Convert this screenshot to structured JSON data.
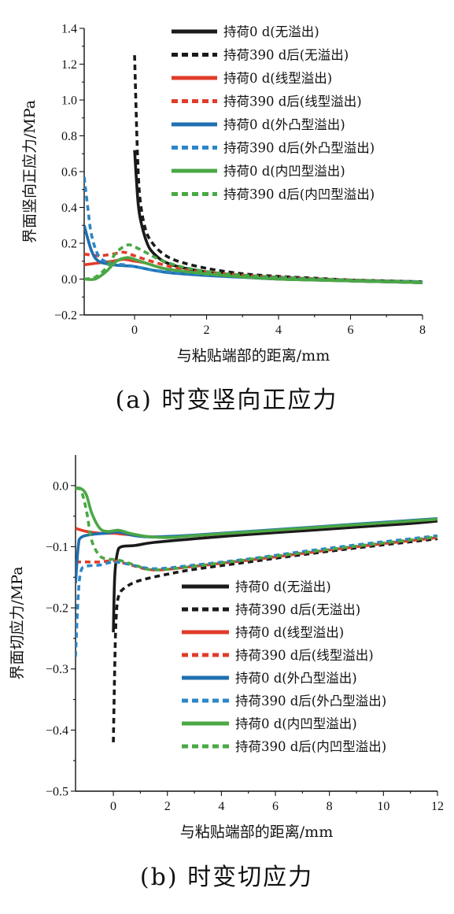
{
  "chart_data": [
    {
      "type": "line",
      "caption": "(a) 时变竖向正应力",
      "xlabel": "与粘贴端部的距离/mm",
      "ylabel": "界面竖向正应力/MPa",
      "xlim": [
        -1.4,
        8
      ],
      "ylim": [
        -0.2,
        1.4
      ],
      "x_ticks": [
        0,
        2,
        4,
        6,
        8
      ],
      "y_ticks": [
        -0.2,
        0.0,
        0.2,
        0.4,
        0.6,
        0.8,
        1.0,
        1.2,
        1.4
      ],
      "x_tick_labels": [
        "0",
        "2",
        "4",
        "6",
        "8"
      ],
      "y_tick_labels": [
        "−0.2",
        "0.0",
        "0.2",
        "0.4",
        "0.6",
        "0.8",
        "1.0",
        "1.2",
        "1.4"
      ],
      "legend_position": "top-right",
      "series": [
        {
          "name": "持荷0 d(无溢出)",
          "color": "#1a1a1a",
          "dash": "solid",
          "points": [
            [
              0.0,
              0.72
            ],
            [
              0.1,
              0.42
            ],
            [
              0.2,
              0.3
            ],
            [
              0.35,
              0.2
            ],
            [
              0.5,
              0.15
            ],
            [
              0.8,
              0.1
            ],
            [
              1.2,
              0.07
            ],
            [
              2,
              0.04
            ],
            [
              3,
              0.02
            ],
            [
              4,
              0.01
            ],
            [
              5,
              0.0
            ],
            [
              6,
              -0.01
            ],
            [
              7,
              -0.015
            ],
            [
              8,
              -0.02
            ]
          ]
        },
        {
          "name": "持荷390 d后(无溢出)",
          "color": "#1a1a1a",
          "dash": "dashed",
          "points": [
            [
              0.0,
              1.25
            ],
            [
              0.08,
              0.7
            ],
            [
              0.15,
              0.45
            ],
            [
              0.3,
              0.28
            ],
            [
              0.5,
              0.2
            ],
            [
              0.8,
              0.14
            ],
            [
              1.2,
              0.1
            ],
            [
              2,
              0.06
            ],
            [
              3,
              0.03
            ],
            [
              4,
              0.015
            ],
            [
              5,
              0.005
            ],
            [
              6,
              -0.005
            ],
            [
              7,
              -0.01
            ],
            [
              8,
              -0.015
            ]
          ]
        },
        {
          "name": "持荷0 d(线型溢出)",
          "color": "#e03c2a",
          "dash": "solid",
          "points": [
            [
              -1.4,
              0.08
            ],
            [
              -1.0,
              0.09
            ],
            [
              -0.6,
              0.1
            ],
            [
              -0.3,
              0.11
            ],
            [
              0.0,
              0.1
            ],
            [
              0.3,
              0.09
            ],
            [
              0.8,
              0.06
            ],
            [
              1.5,
              0.04
            ],
            [
              2.5,
              0.02
            ],
            [
              4,
              0.0
            ],
            [
              6,
              -0.01
            ],
            [
              8,
              -0.02
            ]
          ]
        },
        {
          "name": "持荷390 d后(线型溢出)",
          "color": "#e03c2a",
          "dash": "dashed",
          "points": [
            [
              -1.4,
              0.14
            ],
            [
              -1.0,
              0.13
            ],
            [
              -0.6,
              0.14
            ],
            [
              -0.3,
              0.15
            ],
            [
              0.0,
              0.13
            ],
            [
              0.3,
              0.11
            ],
            [
              0.8,
              0.08
            ],
            [
              1.5,
              0.05
            ],
            [
              2.5,
              0.03
            ],
            [
              4,
              0.01
            ],
            [
              6,
              -0.005
            ],
            [
              8,
              -0.015
            ]
          ]
        },
        {
          "name": "持荷0 d(外凸型溢出)",
          "color": "#1f6fb0",
          "dash": "solid",
          "points": [
            [
              -1.4,
              0.3
            ],
            [
              -1.2,
              0.16
            ],
            [
              -1.0,
              0.1
            ],
            [
              -0.6,
              0.08
            ],
            [
              -0.3,
              0.075
            ],
            [
              0.0,
              0.07
            ],
            [
              0.5,
              0.05
            ],
            [
              1.0,
              0.035
            ],
            [
              2,
              0.02
            ],
            [
              3,
              0.01
            ],
            [
              4,
              0.0
            ],
            [
              6,
              -0.01
            ],
            [
              8,
              -0.02
            ]
          ]
        },
        {
          "name": "持荷390 d后(外凸型溢出)",
          "color": "#2b86c8",
          "dash": "dashed",
          "points": [
            [
              -1.4,
              0.57
            ],
            [
              -1.3,
              0.4
            ],
            [
              -1.2,
              0.25
            ],
            [
              -1.0,
              0.13
            ],
            [
              -0.7,
              0.09
            ],
            [
              -0.3,
              0.08
            ],
            [
              0.0,
              0.07
            ],
            [
              0.5,
              0.05
            ],
            [
              1.0,
              0.04
            ],
            [
              2,
              0.025
            ],
            [
              3,
              0.012
            ],
            [
              4,
              0.004
            ],
            [
              6,
              -0.008
            ],
            [
              8,
              -0.015
            ]
          ]
        },
        {
          "name": "持荷0 d(内凹型溢出)",
          "color": "#4aa845",
          "dash": "solid",
          "points": [
            [
              -1.4,
              0.0
            ],
            [
              -1.1,
              0.0
            ],
            [
              -0.8,
              0.04
            ],
            [
              -0.5,
              0.1
            ],
            [
              -0.2,
              0.12
            ],
            [
              0.0,
              0.11
            ],
            [
              0.3,
              0.09
            ],
            [
              0.8,
              0.06
            ],
            [
              1.5,
              0.04
            ],
            [
              2.5,
              0.02
            ],
            [
              4,
              0.0
            ],
            [
              6,
              -0.01
            ],
            [
              8,
              -0.02
            ]
          ]
        },
        {
          "name": "持荷390 d后(内凹型溢出)",
          "color": "#4aa845",
          "dash": "dashed",
          "points": [
            [
              -1.4,
              0.0
            ],
            [
              -1.1,
              0.01
            ],
            [
              -0.8,
              0.06
            ],
            [
              -0.5,
              0.15
            ],
            [
              -0.2,
              0.19
            ],
            [
              0.0,
              0.18
            ],
            [
              0.3,
              0.15
            ],
            [
              0.8,
              0.1
            ],
            [
              1.5,
              0.06
            ],
            [
              2.5,
              0.03
            ],
            [
              4,
              0.01
            ],
            [
              6,
              -0.005
            ],
            [
              8,
              -0.015
            ]
          ]
        }
      ]
    },
    {
      "type": "line",
      "caption": "(b) 时变切应力",
      "xlabel": "与粘贴端部的距离/mm",
      "ylabel": "界面切应力/MPa",
      "xlim": [
        -1.4,
        12
      ],
      "ylim": [
        -0.5,
        0.05
      ],
      "x_ticks": [
        0,
        2,
        4,
        6,
        8,
        10,
        12
      ],
      "y_ticks": [
        -0.5,
        -0.4,
        -0.3,
        -0.2,
        -0.1,
        0.0
      ],
      "x_tick_labels": [
        "0",
        "2",
        "4",
        "6",
        "8",
        "10",
        "12"
      ],
      "y_tick_labels": [
        "−0.5",
        "−0.4",
        "−0.3",
        "−0.2",
        "−0.1",
        "0.0"
      ],
      "legend_position": "center-right",
      "series": [
        {
          "name": "持荷0 d(无溢出)",
          "color": "#1a1a1a",
          "dash": "solid",
          "points": [
            [
              0.0,
              -0.24
            ],
            [
              0.05,
              -0.15
            ],
            [
              0.15,
              -0.11
            ],
            [
              0.3,
              -0.1
            ],
            [
              0.8,
              -0.098
            ],
            [
              1.5,
              -0.093
            ],
            [
              3,
              -0.087
            ],
            [
              5,
              -0.08
            ],
            [
              7,
              -0.074
            ],
            [
              9,
              -0.068
            ],
            [
              11,
              -0.062
            ],
            [
              12,
              -0.058
            ]
          ]
        },
        {
          "name": "持荷390 d后(无溢出)",
          "color": "#1a1a1a",
          "dash": "dashed",
          "points": [
            [
              0.0,
              -0.42
            ],
            [
              0.05,
              -0.3
            ],
            [
              0.1,
              -0.22
            ],
            [
              0.2,
              -0.18
            ],
            [
              0.5,
              -0.165
            ],
            [
              1.0,
              -0.155
            ],
            [
              2,
              -0.145
            ],
            [
              3,
              -0.137
            ],
            [
              5,
              -0.125
            ],
            [
              7,
              -0.113
            ],
            [
              9,
              -0.102
            ],
            [
              11,
              -0.092
            ],
            [
              12,
              -0.087
            ]
          ]
        },
        {
          "name": "持荷0 d(线型溢出)",
          "color": "#e03c2a",
          "dash": "solid",
          "points": [
            [
              -1.4,
              -0.07
            ],
            [
              -1.0,
              -0.075
            ],
            [
              -0.5,
              -0.078
            ],
            [
              0.0,
              -0.078
            ],
            [
              0.5,
              -0.08
            ],
            [
              1.5,
              -0.084
            ],
            [
              3,
              -0.082
            ],
            [
              5,
              -0.076
            ],
            [
              7,
              -0.07
            ],
            [
              9,
              -0.064
            ],
            [
              11,
              -0.058
            ],
            [
              12,
              -0.055
            ]
          ]
        },
        {
          "name": "持荷390 d后(线型溢出)",
          "color": "#e03c2a",
          "dash": "dashed",
          "points": [
            [
              -1.4,
              -0.125
            ],
            [
              -1.0,
              -0.125
            ],
            [
              -0.5,
              -0.125
            ],
            [
              0.0,
              -0.123
            ],
            [
              0.5,
              -0.128
            ],
            [
              1.5,
              -0.138
            ],
            [
              3,
              -0.132
            ],
            [
              5,
              -0.122
            ],
            [
              7,
              -0.111
            ],
            [
              9,
              -0.1
            ],
            [
              11,
              -0.09
            ],
            [
              12,
              -0.085
            ]
          ]
        },
        {
          "name": "持荷0 d(外凸型溢出)",
          "color": "#1f6fb0",
          "dash": "solid",
          "points": [
            [
              -1.4,
              -0.16
            ],
            [
              -1.3,
              -0.1
            ],
            [
              -1.2,
              -0.085
            ],
            [
              -0.8,
              -0.08
            ],
            [
              -0.3,
              -0.078
            ],
            [
              0.2,
              -0.076
            ],
            [
              0.8,
              -0.082
            ],
            [
              1.5,
              -0.084
            ],
            [
              3,
              -0.081
            ],
            [
              5,
              -0.075
            ],
            [
              7,
              -0.069
            ],
            [
              9,
              -0.063
            ],
            [
              11,
              -0.057
            ],
            [
              12,
              -0.054
            ]
          ]
        },
        {
          "name": "持荷390 d后(外凸型溢出)",
          "color": "#2b86c8",
          "dash": "dashed",
          "points": [
            [
              -1.4,
              -0.28
            ],
            [
              -1.3,
              -0.18
            ],
            [
              -1.2,
              -0.14
            ],
            [
              -1.0,
              -0.132
            ],
            [
              -0.5,
              -0.13
            ],
            [
              0.0,
              -0.125
            ],
            [
              0.5,
              -0.128
            ],
            [
              1.5,
              -0.136
            ],
            [
              3,
              -0.13
            ],
            [
              5,
              -0.12
            ],
            [
              7,
              -0.108
            ],
            [
              9,
              -0.097
            ],
            [
              11,
              -0.087
            ],
            [
              12,
              -0.082
            ]
          ]
        },
        {
          "name": "持荷0 d(内凹型溢出)",
          "color": "#4aa845",
          "dash": "solid",
          "points": [
            [
              -1.4,
              -0.004
            ],
            [
              -1.2,
              -0.005
            ],
            [
              -1.0,
              -0.015
            ],
            [
              -0.8,
              -0.045
            ],
            [
              -0.5,
              -0.07
            ],
            [
              -0.2,
              -0.075
            ],
            [
              0.2,
              -0.073
            ],
            [
              0.6,
              -0.078
            ],
            [
              1.2,
              -0.083
            ],
            [
              2,
              -0.085
            ],
            [
              3,
              -0.082
            ],
            [
              5,
              -0.076
            ],
            [
              7,
              -0.07
            ],
            [
              9,
              -0.064
            ],
            [
              11,
              -0.058
            ],
            [
              12,
              -0.055
            ]
          ]
        },
        {
          "name": "持荷390 d后(内凹型溢出)",
          "color": "#4aa845",
          "dash": "dashed",
          "points": [
            [
              -1.4,
              -0.005
            ],
            [
              -1.2,
              -0.008
            ],
            [
              -1.0,
              -0.04
            ],
            [
              -0.8,
              -0.09
            ],
            [
              -0.5,
              -0.115
            ],
            [
              -0.2,
              -0.12
            ],
            [
              0.2,
              -0.122
            ],
            [
              0.8,
              -0.13
            ],
            [
              1.5,
              -0.138
            ],
            [
              3,
              -0.132
            ],
            [
              5,
              -0.121
            ],
            [
              7,
              -0.11
            ],
            [
              9,
              -0.099
            ],
            [
              11,
              -0.089
            ],
            [
              12,
              -0.084
            ]
          ]
        }
      ]
    }
  ]
}
